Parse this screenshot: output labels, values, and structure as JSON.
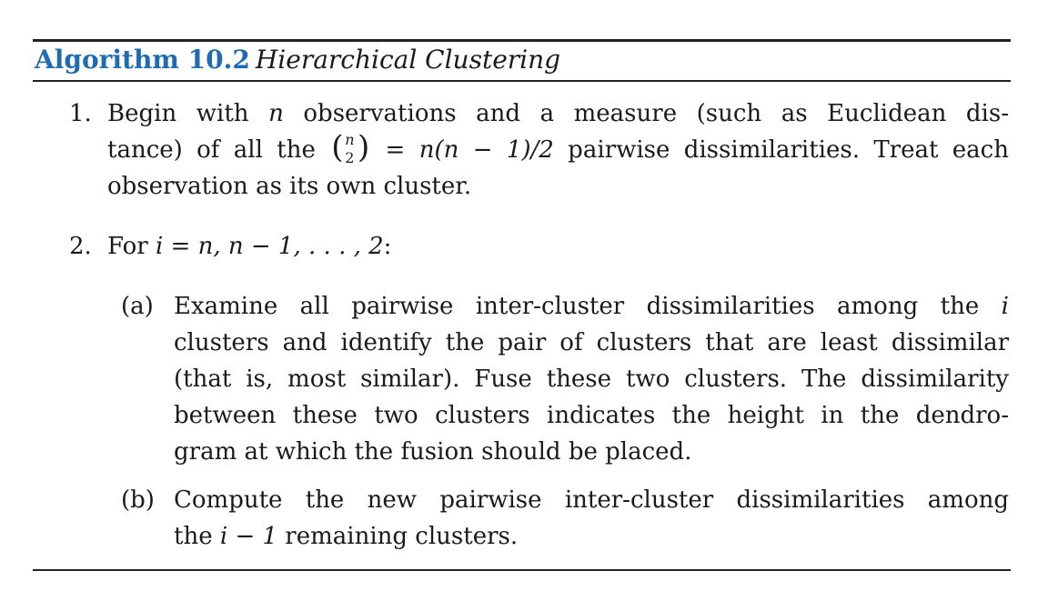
{
  "algorithm": {
    "label": "Algorithm 10.2",
    "name": "Hierarchical Clustering"
  },
  "step1": {
    "number": "1.",
    "line1": {
      "a": "Begin with ",
      "var_n": "n",
      "b": " observations and a measure (such as Euclidean dis-"
    },
    "line2": {
      "a": "tance) of all the ",
      "binom_top": "n",
      "binom_bottom": "2",
      "eq": " = ",
      "formula": "n(n − 1)/2",
      "b": " pairwise dissimilarities. Treat each"
    },
    "line3": "observation as its own cluster."
  },
  "step2": {
    "number": "2.",
    "text_a": "For ",
    "formula": "i = n, n − 1, . . . , 2",
    "text_b": ":",
    "sub_a": {
      "label": "(a)",
      "line1a": "Examine all pairwise inter-cluster dissimilarities among the ",
      "line1var": "i",
      "line2": "clusters and identify the pair of clusters that are least dissimilar",
      "line3": "(that is, most similar). Fuse these two clusters. The dissimilarity",
      "line4": "between these two clusters indicates the height in the dendro-",
      "line5": "gram at which the fusion should be placed."
    },
    "sub_b": {
      "label": "(b)",
      "line1": "Compute the new pairwise inter-cluster dissimilarities among",
      "line2a": "the ",
      "line2var": "i − 1",
      "line2b": " remaining clusters."
    }
  }
}
